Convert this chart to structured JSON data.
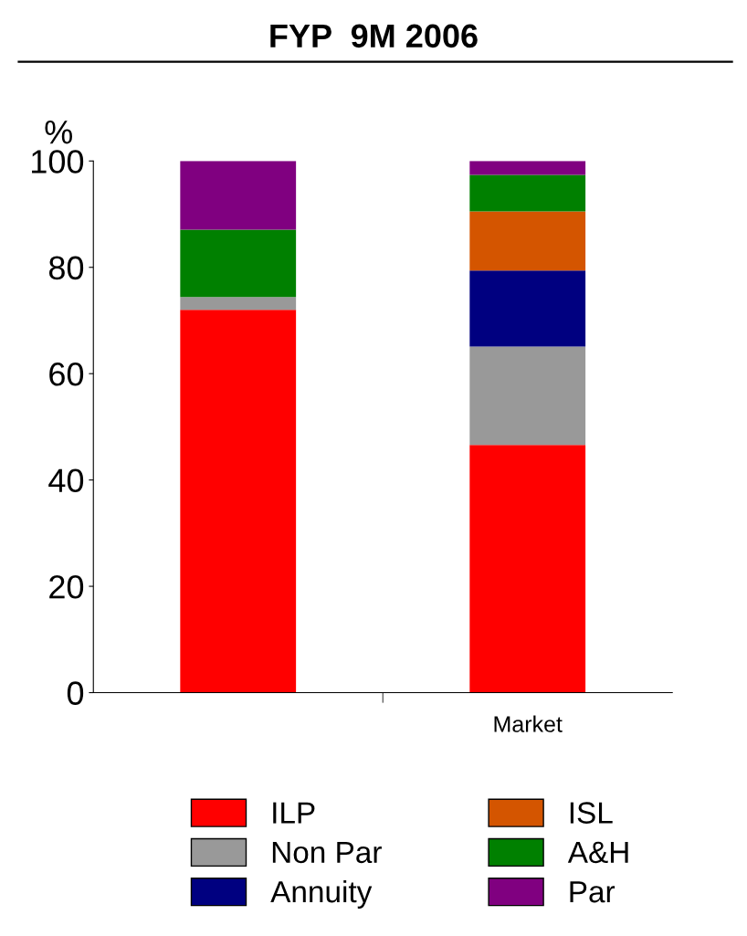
{
  "chart_data": {
    "type": "bar",
    "title": "FYP  9M 2006",
    "ylabel": "%",
    "categories": [
      null,
      "Market"
    ],
    "stacked": true,
    "ylim": [
      0,
      100
    ],
    "yticks": [
      0,
      20,
      40,
      60,
      80,
      100
    ],
    "grid": false,
    "legend": "bottom",
    "series": [
      {
        "name": "ILP",
        "color": "#ff0000",
        "values": [
          72.0,
          46.6
        ]
      },
      {
        "name": "Non Par",
        "color": "#999999",
        "values": [
          2.4,
          18.5
        ]
      },
      {
        "name": "Annuity",
        "color": "#000080",
        "values": [
          0,
          14.3
        ]
      },
      {
        "name": "ISL",
        "color": "#d45500",
        "values": [
          0,
          11.1
        ]
      },
      {
        "name": "A&H",
        "color": "#008000",
        "values": [
          12.7,
          6.9
        ]
      },
      {
        "name": "Par",
        "color": "#800080",
        "values": [
          12.9,
          2.6
        ]
      }
    ]
  }
}
